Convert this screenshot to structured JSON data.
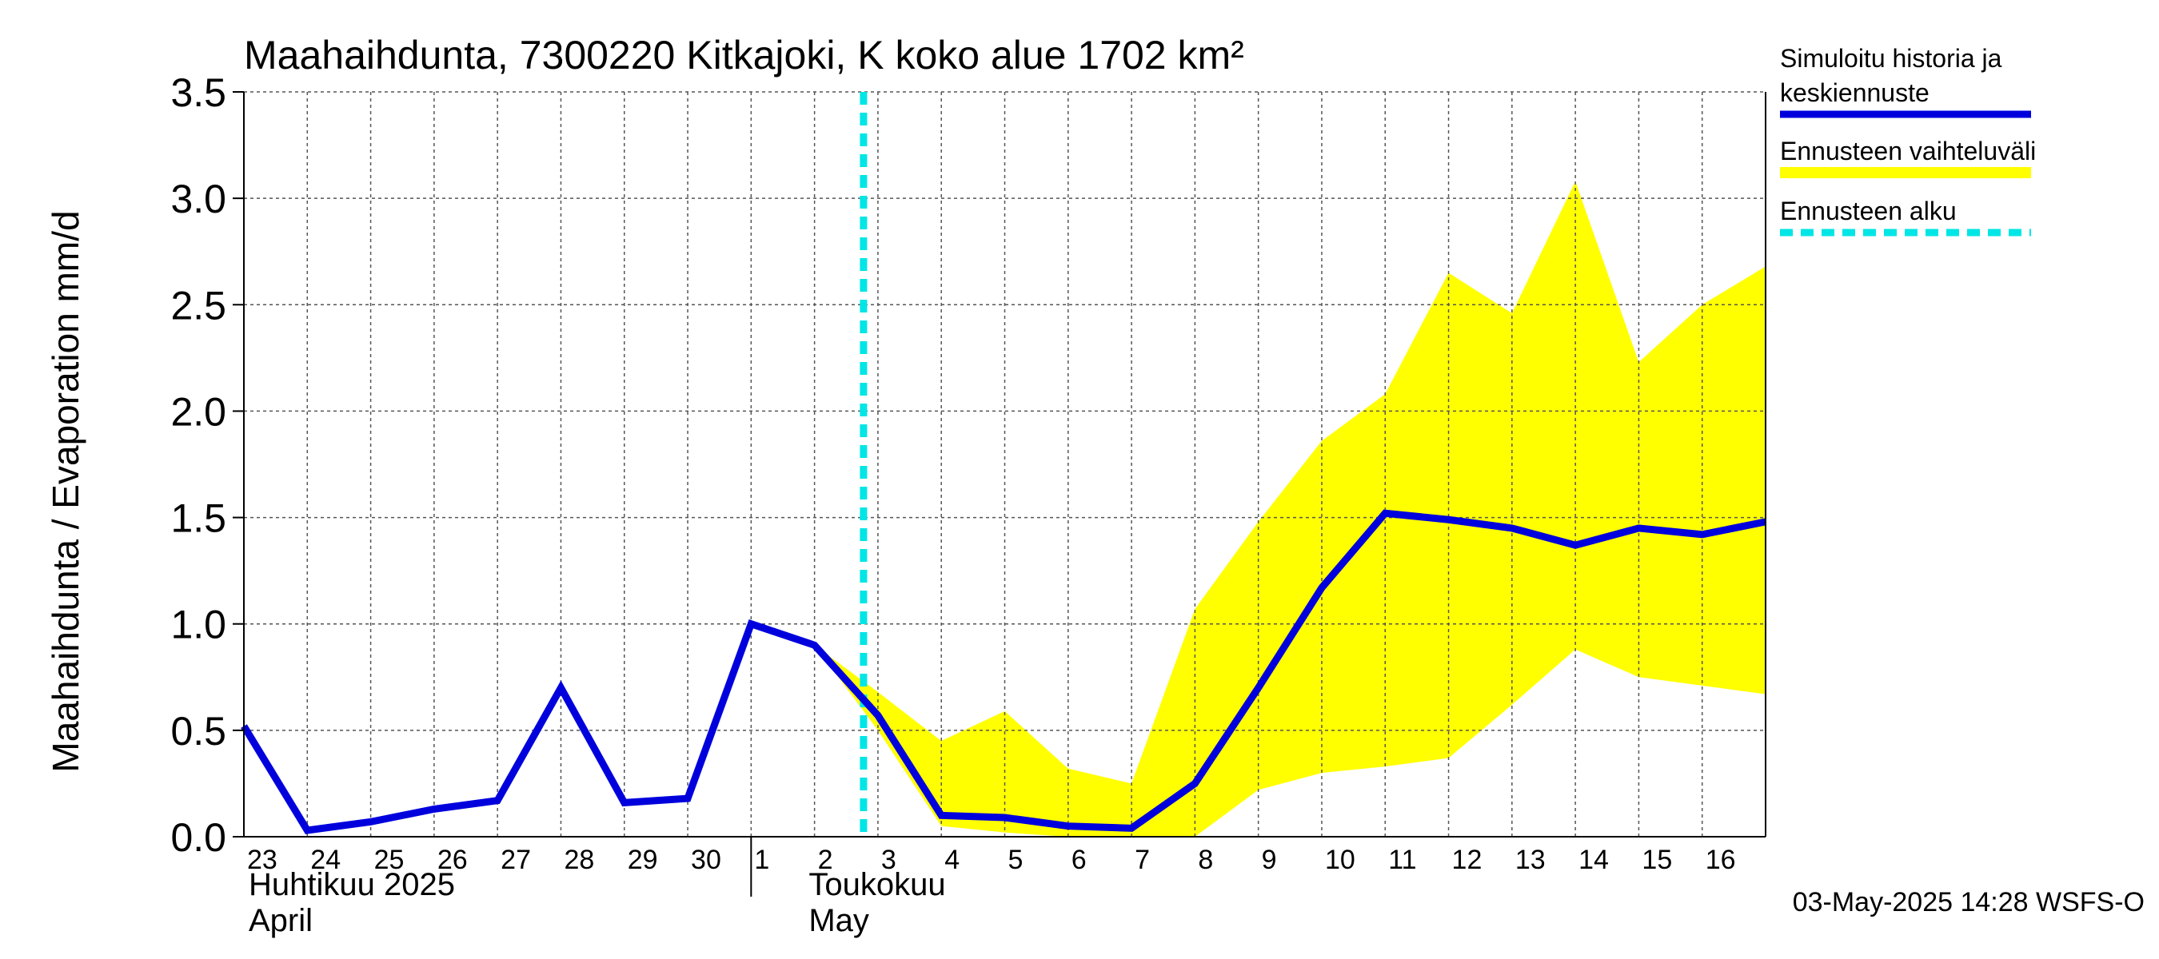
{
  "chart_data": {
    "type": "line",
    "title": "Maahaihdunta, 7300220 Kitkajoki, K koko alue 1702 km²",
    "ylabel": "Maahaihdunta / Evaporation   mm/d",
    "ylim": [
      0,
      3.5
    ],
    "yticks": [
      "0.0",
      "0.5",
      "1.0",
      "1.5",
      "2.0",
      "2.5",
      "3.0",
      "3.5"
    ],
    "y_tick_values": [
      0,
      0.5,
      1.0,
      1.5,
      2.0,
      2.5,
      3.0,
      3.5
    ],
    "x_start": "2025-04-23",
    "x_end": "2025-05-16",
    "x_tick_labels": [
      "23",
      "24",
      "25",
      "26",
      "27",
      "28",
      "29",
      "30",
      "1",
      "2",
      "3",
      "4",
      "5",
      "6",
      "7",
      "8",
      "9",
      "10",
      "11",
      "12",
      "13",
      "14",
      "15",
      "16"
    ],
    "month_labels": [
      {
        "line1": "Huhtikuu  2025",
        "line2": "April"
      },
      {
        "line1": "Toukokuu",
        "line2": "May"
      }
    ],
    "grid": true,
    "legend_position": "right",
    "forecast_start": "2025-05-03",
    "series": [
      {
        "name": "Simuloitu historia ja keskiennuste",
        "color": "#0000dd",
        "x": [
          "2025-04-23",
          "2025-04-24",
          "2025-04-25",
          "2025-04-26",
          "2025-04-27",
          "2025-04-28",
          "2025-04-29",
          "2025-04-30",
          "2025-05-01",
          "2025-05-02",
          "2025-05-03",
          "2025-05-04",
          "2025-05-05",
          "2025-05-06",
          "2025-05-07",
          "2025-05-08",
          "2025-05-09",
          "2025-05-10",
          "2025-05-11",
          "2025-05-12",
          "2025-05-13",
          "2025-05-14",
          "2025-05-15",
          "2025-05-16",
          "2025-05-17"
        ],
        "values": [
          0.52,
          0.03,
          0.07,
          0.13,
          0.17,
          0.7,
          0.16,
          0.18,
          1.0,
          0.9,
          0.57,
          0.1,
          0.09,
          0.05,
          0.04,
          0.25,
          0.7,
          1.17,
          1.52,
          1.49,
          1.45,
          1.37,
          1.45,
          1.42,
          1.48
        ]
      },
      {
        "name": "Ennusteen vaihteluväli",
        "color": "#ffff00",
        "x": [
          "2025-05-02",
          "2025-05-03",
          "2025-05-04",
          "2025-05-05",
          "2025-05-06",
          "2025-05-07",
          "2025-05-08",
          "2025-05-09",
          "2025-05-10",
          "2025-05-11",
          "2025-05-12",
          "2025-05-13",
          "2025-05-14",
          "2025-05-15",
          "2025-05-16",
          "2025-05-17"
        ],
        "upper": [
          0.9,
          0.68,
          0.45,
          0.59,
          0.32,
          0.25,
          1.07,
          1.48,
          1.86,
          2.08,
          2.65,
          2.46,
          3.08,
          2.23,
          2.5,
          2.68
        ],
        "lower": [
          0.9,
          0.5,
          0.05,
          0.02,
          0.0,
          0.0,
          0.0,
          0.22,
          0.3,
          0.33,
          0.37,
          0.62,
          0.88,
          0.75,
          0.71,
          0.67
        ]
      },
      {
        "name": "Ennusteen alku",
        "color": "#00e5e5"
      }
    ],
    "timestamp": "03-May-2025 14:28 WSFS-O"
  }
}
